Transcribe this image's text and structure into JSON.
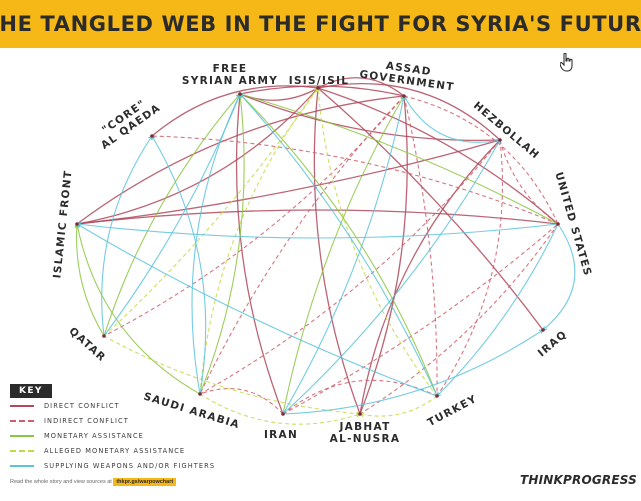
{
  "title": "THE TANGLED WEB IN THE FIGHT FOR SYRIA'S FUTURE",
  "nodes": [
    {
      "id": "fsa",
      "lines": [
        "FREE",
        "SYRIAN ARMY"
      ]
    },
    {
      "id": "isis",
      "lines": [
        "ISIS/ISIL"
      ]
    },
    {
      "id": "assad",
      "lines": [
        "ASSAD",
        "GOVERNMENT"
      ]
    },
    {
      "id": "hezbollah",
      "lines": [
        "HEZBOLLAH"
      ]
    },
    {
      "id": "us",
      "lines": [
        "UNITED STATES"
      ]
    },
    {
      "id": "iraq",
      "lines": [
        "IRAQ"
      ]
    },
    {
      "id": "turkey",
      "lines": [
        "TURKEY"
      ]
    },
    {
      "id": "nusra",
      "lines": [
        "JABHAT",
        "AL-NUSRA"
      ]
    },
    {
      "id": "iran",
      "lines": [
        "IRAN"
      ]
    },
    {
      "id": "saudi",
      "lines": [
        "SAUDI ARABIA"
      ]
    },
    {
      "id": "qatar",
      "lines": [
        "QATAR"
      ]
    },
    {
      "id": "islamic_front",
      "lines": [
        "ISLAMIC FRONT"
      ]
    },
    {
      "id": "core_aq",
      "lines": [
        "\"CORE\"",
        "AL QAEDA"
      ]
    }
  ],
  "relation_colors": {
    "direct": "#b0495c",
    "indirect": "#cf5d6a",
    "monetary": "#8cc63f",
    "alleged": "#c4d946",
    "weapons": "#5bc3dc"
  },
  "key": {
    "title": "KEY",
    "items": [
      {
        "label": "DIRECT CONFLICT",
        "type": "direct",
        "color": "#b0495c",
        "dashed": false
      },
      {
        "label": "INDIRECT CONFLICT",
        "type": "indirect",
        "color": "#cf5d6a",
        "dashed": true
      },
      {
        "label": "MONETARY ASSISTANCE",
        "type": "monetary",
        "color": "#8cc63f",
        "dashed": false
      },
      {
        "label": "ALLEGED MONETARY ASSISTANCE",
        "type": "alleged",
        "color": "#c4d946",
        "dashed": true
      },
      {
        "label": "SUPPLYING WEAPONS AND/OR FIGHTERS",
        "type": "weapons",
        "color": "#5bc3dc",
        "dashed": false
      }
    ]
  },
  "edges": [
    {
      "from": "isis",
      "to": "fsa",
      "type": "direct"
    },
    {
      "from": "isis",
      "to": "assad",
      "type": "direct"
    },
    {
      "from": "isis",
      "to": "core_aq",
      "type": "direct"
    },
    {
      "from": "isis",
      "to": "islamic_front",
      "type": "direct"
    },
    {
      "from": "isis",
      "to": "iraq",
      "type": "direct"
    },
    {
      "from": "isis",
      "to": "us",
      "type": "direct"
    },
    {
      "from": "isis",
      "to": "nusra",
      "type": "direct"
    },
    {
      "from": "isis",
      "to": "hezbollah",
      "type": "direct"
    },
    {
      "from": "fsa",
      "to": "assad",
      "type": "direct"
    },
    {
      "from": "fsa",
      "to": "hezbollah",
      "type": "direct"
    },
    {
      "from": "fsa",
      "to": "iran",
      "type": "direct"
    },
    {
      "from": "islamic_front",
      "to": "assad",
      "type": "direct"
    },
    {
      "from": "islamic_front",
      "to": "hezbollah",
      "type": "direct"
    },
    {
      "from": "islamic_front",
      "to": "us",
      "type": "direct"
    },
    {
      "from": "nusra",
      "to": "assad",
      "type": "direct"
    },
    {
      "from": "nusra",
      "to": "hezbollah",
      "type": "direct"
    },
    {
      "from": "assad",
      "to": "turkey",
      "type": "indirect"
    },
    {
      "from": "assad",
      "to": "saudi",
      "type": "indirect"
    },
    {
      "from": "assad",
      "to": "qatar",
      "type": "indirect"
    },
    {
      "from": "assad",
      "to": "us",
      "type": "indirect"
    },
    {
      "from": "iran",
      "to": "us",
      "type": "indirect"
    },
    {
      "from": "iran",
      "to": "saudi",
      "type": "indirect"
    },
    {
      "from": "hezbollah",
      "to": "saudi",
      "type": "indirect"
    },
    {
      "from": "hezbollah",
      "to": "turkey",
      "type": "indirect"
    },
    {
      "from": "hezbollah",
      "to": "us",
      "type": "indirect"
    },
    {
      "from": "us",
      "to": "nusra",
      "type": "indirect"
    },
    {
      "from": "us",
      "to": "core_aq",
      "type": "indirect"
    },
    {
      "from": "turkey",
      "to": "iran",
      "type": "indirect"
    },
    {
      "from": "us",
      "to": "fsa",
      "type": "monetary"
    },
    {
      "from": "qatar",
      "to": "fsa",
      "type": "monetary"
    },
    {
      "from": "saudi",
      "to": "fsa",
      "type": "monetary"
    },
    {
      "from": "saudi",
      "to": "islamic_front",
      "type": "monetary"
    },
    {
      "from": "qatar",
      "to": "islamic_front",
      "type": "monetary"
    },
    {
      "from": "iran",
      "to": "assad",
      "type": "monetary"
    },
    {
      "from": "turkey",
      "to": "fsa",
      "type": "monetary"
    },
    {
      "from": "saudi",
      "to": "isis",
      "type": "alleged"
    },
    {
      "from": "qatar",
      "to": "isis",
      "type": "alleged"
    },
    {
      "from": "qatar",
      "to": "nusra",
      "type": "alleged"
    },
    {
      "from": "saudi",
      "to": "nusra",
      "type": "alleged"
    },
    {
      "from": "turkey",
      "to": "isis",
      "type": "alleged"
    },
    {
      "from": "turkey",
      "to": "nusra",
      "type": "alleged"
    },
    {
      "from": "iran",
      "to": "hezbollah",
      "type": "weapons"
    },
    {
      "from": "hezbollah",
      "to": "assad",
      "type": "weapons"
    },
    {
      "from": "us",
      "to": "iraq",
      "type": "weapons"
    },
    {
      "from": "us",
      "to": "turkey",
      "type": "weapons"
    },
    {
      "from": "us",
      "to": "islamic_front",
      "type": "weapons"
    },
    {
      "from": "iran",
      "to": "iraq",
      "type": "weapons"
    },
    {
      "from": "saudi",
      "to": "fsa",
      "type": "weapons"
    },
    {
      "from": "qatar",
      "to": "fsa",
      "type": "weapons"
    },
    {
      "from": "turkey",
      "to": "fsa",
      "type": "weapons"
    },
    {
      "from": "qatar",
      "to": "core_aq",
      "type": "weapons"
    },
    {
      "from": "saudi",
      "to": "core_aq",
      "type": "weapons"
    },
    {
      "from": "turkey",
      "to": "islamic_front",
      "type": "weapons"
    },
    {
      "from": "iran",
      "to": "assad",
      "type": "weapons"
    }
  ],
  "footer": {
    "text": "Read the whole story and view sources at",
    "url": "thkpr.gs/warpowchart"
  },
  "logo": "THINKPROGRESS"
}
